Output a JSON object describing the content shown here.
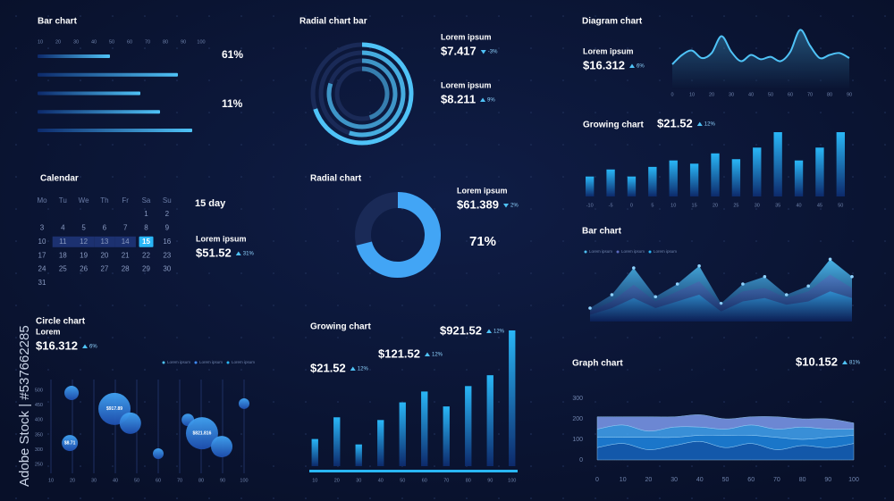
{
  "watermark": "Adobe Stock | #537662285",
  "chart_data": [
    {
      "type": "bar",
      "orientation": "horizontal",
      "title": "Bar chart",
      "values": [
        49,
        87,
        66,
        77,
        95
      ],
      "color": "#4fc3f7",
      "xlim": [
        10,
        100
      ],
      "xticks": [
        10,
        20,
        30,
        40,
        50,
        60,
        70,
        80,
        90,
        100
      ],
      "annotations": [
        "61%",
        "11%"
      ]
    },
    {
      "type": "radial",
      "title": "Radial chart bar",
      "values": [
        70,
        55,
        80,
        45
      ],
      "lim": [
        0,
        100
      ],
      "color": "#4fc3f7",
      "stats": [
        {
          "label": "Lorem ipsum",
          "value": "$7.417",
          "change": "-3%",
          "direction": "down"
        },
        {
          "label": "Lorem ipsum",
          "value": "$8.211",
          "change": "9%",
          "direction": "up"
        }
      ]
    },
    {
      "type": "line",
      "title": "Diagram chart",
      "x": [
        0,
        5,
        10,
        15,
        20,
        25,
        30,
        35,
        40,
        45,
        50,
        55,
        60,
        65,
        70,
        75,
        80,
        85,
        90
      ],
      "values": [
        40,
        55,
        62,
        50,
        58,
        85,
        60,
        45,
        55,
        48,
        52,
        45,
        60,
        95,
        70,
        50,
        55,
        58,
        50
      ],
      "color": "#4fc3f7",
      "xlim": [
        0,
        90
      ],
      "xticks": [
        0,
        10,
        20,
        30,
        40,
        50,
        60,
        70,
        80,
        90
      ],
      "ylim": [
        0,
        100
      ],
      "stats": [
        {
          "label": "Lorem ipsum",
          "value": "$16.312",
          "change": "6%",
          "direction": "up"
        }
      ]
    },
    {
      "type": "bar",
      "title": "Growing chart",
      "categories": [
        "-10",
        "-5",
        "0",
        "5",
        "10",
        "15",
        "20",
        "25",
        "30",
        "35",
        "40",
        "45",
        "50"
      ],
      "values": [
        31,
        42,
        31,
        46,
        56,
        51,
        67,
        58,
        76,
        100,
        56,
        76,
        100
      ],
      "color": "#29b6f6",
      "ylim": [
        0,
        100
      ],
      "stats": [
        {
          "value": "$21.52",
          "change": "12%",
          "direction": "up"
        }
      ]
    },
    {
      "type": "radial",
      "title": "Radial chart",
      "values": [
        71
      ],
      "value_labels": [
        "71%"
      ],
      "lim": [
        0,
        100
      ],
      "color": "#42a5f5",
      "stats": [
        {
          "label": "Lorem ipsum",
          "value": "$61.389",
          "change": "2%",
          "direction": "down"
        }
      ]
    },
    {
      "type": "area",
      "title": "Bar chart",
      "ylim": [
        0,
        100
      ],
      "series": [
        {
          "name": "Lorem ipsum",
          "color": "#4fc3f7",
          "values": [
            20,
            40,
            80,
            37,
            56,
            83,
            27,
            56,
            67,
            40,
            53,
            93,
            67
          ]
        },
        {
          "name": "Lorem ipsum",
          "color": "#5c6bc0",
          "values": [
            15,
            30,
            55,
            30,
            45,
            60,
            25,
            45,
            50,
            35,
            45,
            70,
            50
          ]
        },
        {
          "name": "Lorem ipsum",
          "color": "#29b6f6",
          "values": [
            10,
            20,
            35,
            20,
            30,
            40,
            15,
            30,
            35,
            25,
            30,
            45,
            35
          ]
        }
      ]
    },
    {
      "type": "bubble",
      "title": "Circle chart",
      "x": [
        19.6,
        39.6,
        47,
        18.8,
        60,
        73.8,
        80.4,
        89.6,
        100
      ],
      "values": [
        491,
        437,
        389,
        322,
        286,
        400,
        355,
        310,
        455
      ],
      "sizes": [
        8,
        18,
        12,
        9,
        6,
        7,
        18,
        12,
        6
      ],
      "bubble_labels": [
        null,
        "$917.89",
        null,
        "$8.71",
        null,
        null,
        "$821.816",
        null,
        null
      ],
      "color": "#42a5f5",
      "xlim": [
        10,
        100
      ],
      "xticks": [
        10,
        20,
        30,
        40,
        50,
        60,
        70,
        80,
        90,
        100
      ],
      "ylim": [
        250,
        500
      ],
      "yticks": [
        250,
        300,
        350,
        400,
        450,
        500
      ],
      "grid": true,
      "legend": [
        {
          "name": "Lorem ipsum",
          "color": "#4fc3f7"
        },
        {
          "name": "Lorem ipsum",
          "color": "#3f8cff"
        },
        {
          "name": "Lorem ipsum",
          "color": "#29b6f6"
        }
      ],
      "stats": [
        {
          "label": "Lorem",
          "value": "$16.312",
          "change": "6%",
          "direction": "up"
        }
      ]
    },
    {
      "type": "bar",
      "title": "Growing chart",
      "categories": [
        "10",
        "20",
        "30",
        "40",
        "50",
        "60",
        "70",
        "80",
        "90",
        "100"
      ],
      "values": [
        20,
        36,
        16,
        34,
        47,
        55,
        44,
        59,
        67,
        100
      ],
      "color": "#29b6f6",
      "ylim": [
        0,
        100
      ],
      "stats": [
        {
          "value": "$21.52",
          "change": "12%",
          "direction": "up"
        },
        {
          "value": "$121.52",
          "change": "12%",
          "direction": "up"
        },
        {
          "value": "$921.52",
          "change": "12%",
          "direction": "up"
        }
      ]
    },
    {
      "type": "area",
      "stacked": true,
      "title": "Graph chart",
      "x": [
        0,
        10,
        20,
        30,
        40,
        50,
        60,
        70,
        80,
        90,
        100
      ],
      "series": [
        {
          "color": "#1565c0",
          "values": [
            60,
            80,
            50,
            70,
            90,
            60,
            80,
            50,
            70,
            60,
            80
          ]
        },
        {
          "color": "#1e88e5",
          "values": [
            50,
            30,
            60,
            40,
            30,
            60,
            40,
            60,
            30,
            50,
            40
          ]
        },
        {
          "color": "#42a5f5",
          "values": [
            40,
            60,
            30,
            50,
            40,
            30,
            50,
            40,
            60,
            40,
            30
          ]
        },
        {
          "color": "#7e9cf0",
          "values": [
            60,
            40,
            70,
            50,
            60,
            50,
            40,
            60,
            40,
            50,
            30
          ]
        }
      ],
      "xlim": [
        0,
        100
      ],
      "xticks": [
        0,
        10,
        20,
        30,
        40,
        50,
        60,
        70,
        80,
        90,
        100
      ],
      "ylim": [
        0,
        300
      ],
      "yticks": [
        0,
        100,
        200,
        300
      ],
      "stats": [
        {
          "value": "$10.152",
          "change": "81%",
          "direction": "up"
        }
      ]
    }
  ],
  "calendar": {
    "title": "Calendar",
    "weekdays": [
      "Mo",
      "Tu",
      "We",
      "Th",
      "Fr",
      "Sa",
      "Su"
    ],
    "weeks": [
      [
        null,
        null,
        null,
        null,
        null,
        1,
        2
      ],
      [
        3,
        4,
        5,
        6,
        7,
        8,
        9
      ],
      [
        10,
        11,
        12,
        13,
        14,
        15,
        16
      ],
      [
        17,
        18,
        19,
        20,
        21,
        22,
        23
      ],
      [
        24,
        25,
        26,
        27,
        28,
        29,
        30
      ],
      [
        31
      ]
    ],
    "selected": 15,
    "day_label": "15 day",
    "stats": [
      {
        "label": "Lorem ipsum",
        "value": "$51.52",
        "change": "31%",
        "direction": "up"
      }
    ]
  }
}
